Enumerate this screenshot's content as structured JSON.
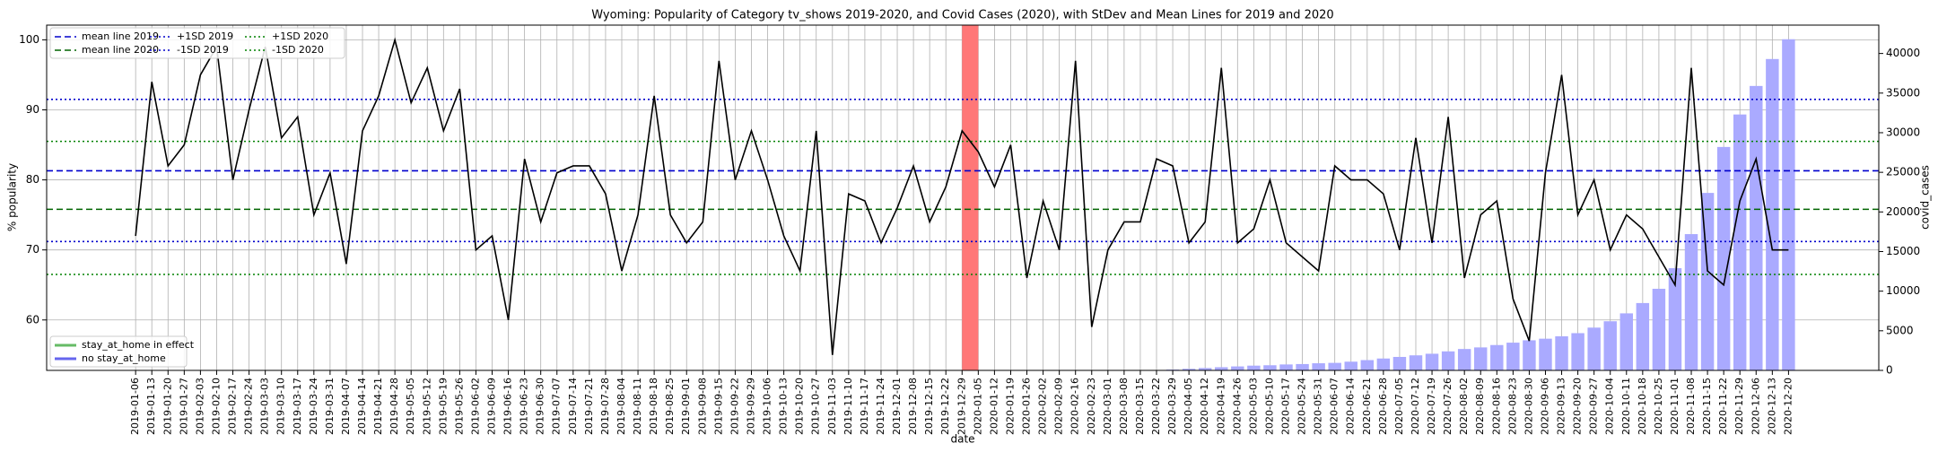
{
  "chart_data": {
    "type": "line",
    "title": "Wyoming: Popularity of Category tv_shows 2019-2020, and Covid Cases (2020), with StDev and Mean Lines for 2019 and 2020",
    "xlabel": "date",
    "ylabel": "% popularity",
    "y2label": "covid_cases",
    "categories": [
      "2019-01-06",
      "2019-01-13",
      "2019-01-20",
      "2019-01-27",
      "2019-02-03",
      "2019-02-10",
      "2019-02-17",
      "2019-02-24",
      "2019-03-03",
      "2019-03-10",
      "2019-03-17",
      "2019-03-24",
      "2019-03-31",
      "2019-04-07",
      "2019-04-14",
      "2019-04-21",
      "2019-04-28",
      "2019-05-05",
      "2019-05-12",
      "2019-05-19",
      "2019-05-26",
      "2019-06-02",
      "2019-06-09",
      "2019-06-16",
      "2019-06-23",
      "2019-06-30",
      "2019-07-07",
      "2019-07-14",
      "2019-07-21",
      "2019-07-28",
      "2019-08-04",
      "2019-08-11",
      "2019-08-18",
      "2019-08-25",
      "2019-09-01",
      "2019-09-08",
      "2019-09-15",
      "2019-09-22",
      "2019-09-29",
      "2019-10-06",
      "2019-10-13",
      "2019-10-20",
      "2019-10-27",
      "2019-11-03",
      "2019-11-10",
      "2019-11-17",
      "2019-11-24",
      "2019-12-01",
      "2019-12-08",
      "2019-12-15",
      "2019-12-22",
      "2019-12-29",
      "2020-01-05",
      "2020-01-12",
      "2020-01-19",
      "2020-01-26",
      "2020-02-02",
      "2020-02-09",
      "2020-02-16",
      "2020-02-23",
      "2020-03-01",
      "2020-03-08",
      "2020-03-15",
      "2020-03-22",
      "2020-03-29",
      "2020-04-05",
      "2020-04-12",
      "2020-04-19",
      "2020-04-26",
      "2020-05-03",
      "2020-05-10",
      "2020-05-17",
      "2020-05-24",
      "2020-05-31",
      "2020-06-07",
      "2020-06-14",
      "2020-06-21",
      "2020-06-28",
      "2020-07-05",
      "2020-07-12",
      "2020-07-19",
      "2020-07-26",
      "2020-08-02",
      "2020-08-09",
      "2020-08-16",
      "2020-08-23",
      "2020-08-30",
      "2020-09-06",
      "2020-09-13",
      "2020-09-20",
      "2020-09-27",
      "2020-10-04",
      "2020-10-11",
      "2020-10-18",
      "2020-10-25",
      "2020-11-01",
      "2020-11-08",
      "2020-11-15",
      "2020-11-22",
      "2020-11-29",
      "2020-12-06",
      "2020-12-13",
      "2020-12-20"
    ],
    "series": [
      {
        "type": "line",
        "color": "#000000",
        "values": [
          72,
          94,
          82,
          85,
          95,
          99,
          80,
          90,
          99,
          86,
          89,
          75,
          81,
          68,
          87,
          92,
          100,
          91,
          96,
          87,
          93,
          70,
          72,
          60,
          83,
          74,
          81,
          82,
          82,
          78,
          67,
          75,
          92,
          75,
          71,
          74,
          97,
          80,
          87,
          80,
          72,
          67,
          87,
          55,
          78,
          77,
          71,
          76,
          82,
          74,
          79,
          87,
          84,
          79,
          85,
          66,
          77,
          70,
          97,
          59,
          70,
          74,
          74,
          83,
          82,
          71,
          74,
          96,
          71,
          73,
          80,
          71,
          69,
          67,
          82,
          80,
          80,
          78,
          70,
          86,
          71,
          89,
          66,
          75,
          77,
          63,
          57,
          81,
          95,
          75,
          80,
          70,
          75,
          73,
          69,
          65,
          96,
          67,
          65,
          77,
          83,
          70,
          70
        ]
      },
      {
        "type": "bar",
        "axis": "y2",
        "color": "#aaaaff",
        "values": [
          null,
          null,
          null,
          null,
          null,
          null,
          null,
          null,
          null,
          null,
          null,
          null,
          null,
          null,
          null,
          null,
          null,
          null,
          null,
          null,
          null,
          null,
          null,
          null,
          null,
          null,
          null,
          null,
          null,
          null,
          null,
          null,
          null,
          null,
          null,
          null,
          null,
          null,
          null,
          null,
          null,
          null,
          null,
          null,
          null,
          null,
          null,
          null,
          null,
          null,
          null,
          null,
          null,
          null,
          null,
          null,
          null,
          null,
          null,
          null,
          null,
          null,
          null,
          null,
          100,
          200,
          300,
          400,
          500,
          600,
          650,
          750,
          800,
          900,
          950,
          1100,
          1300,
          1500,
          1700,
          1900,
          2100,
          2400,
          2700,
          2900,
          3200,
          3500,
          3800,
          4000,
          4300,
          4700,
          5400,
          6200,
          7200,
          8500,
          10300,
          12900,
          17200,
          22400,
          28200,
          32300,
          35900,
          39300,
          41800
        ]
      }
    ],
    "reference_lines": [
      {
        "name": "mean line 2019",
        "value": 81.3,
        "color": "#0000cc",
        "linestyle": "dashed"
      },
      {
        "name": "mean line 2020",
        "value": 75.8,
        "color": "#006400",
        "linestyle": "dashed"
      },
      {
        "name": "+1SD 2019",
        "value": 91.5,
        "color": "#0000cc",
        "linestyle": "dotted"
      },
      {
        "name": "-1SD 2019",
        "value": 71.2,
        "color": "#0000cc",
        "linestyle": "dotted"
      },
      {
        "name": "+1SD 2020",
        "value": 85.5,
        "color": "#008000",
        "linestyle": "dotted"
      },
      {
        "name": "-1SD 2020",
        "value": 66.5,
        "color": "#008000",
        "linestyle": "dotted"
      }
    ],
    "legend2": [
      {
        "name": "stay_at_home in effect",
        "color": "#66bb66"
      },
      {
        "name": "no stay_at_home",
        "color": "#6666ee"
      }
    ],
    "highlight": {
      "from": "2019-12-29",
      "to": "2020-01-05",
      "color": "#ff7777"
    },
    "ylim": [
      52.8,
      102.1
    ],
    "yticks": [
      60,
      70,
      80,
      90,
      100
    ],
    "y2lim": [
      0,
      43580
    ],
    "y2ticks": [
      0,
      5000,
      10000,
      15000,
      20000,
      25000,
      30000,
      35000,
      40000
    ],
    "grid": true
  }
}
